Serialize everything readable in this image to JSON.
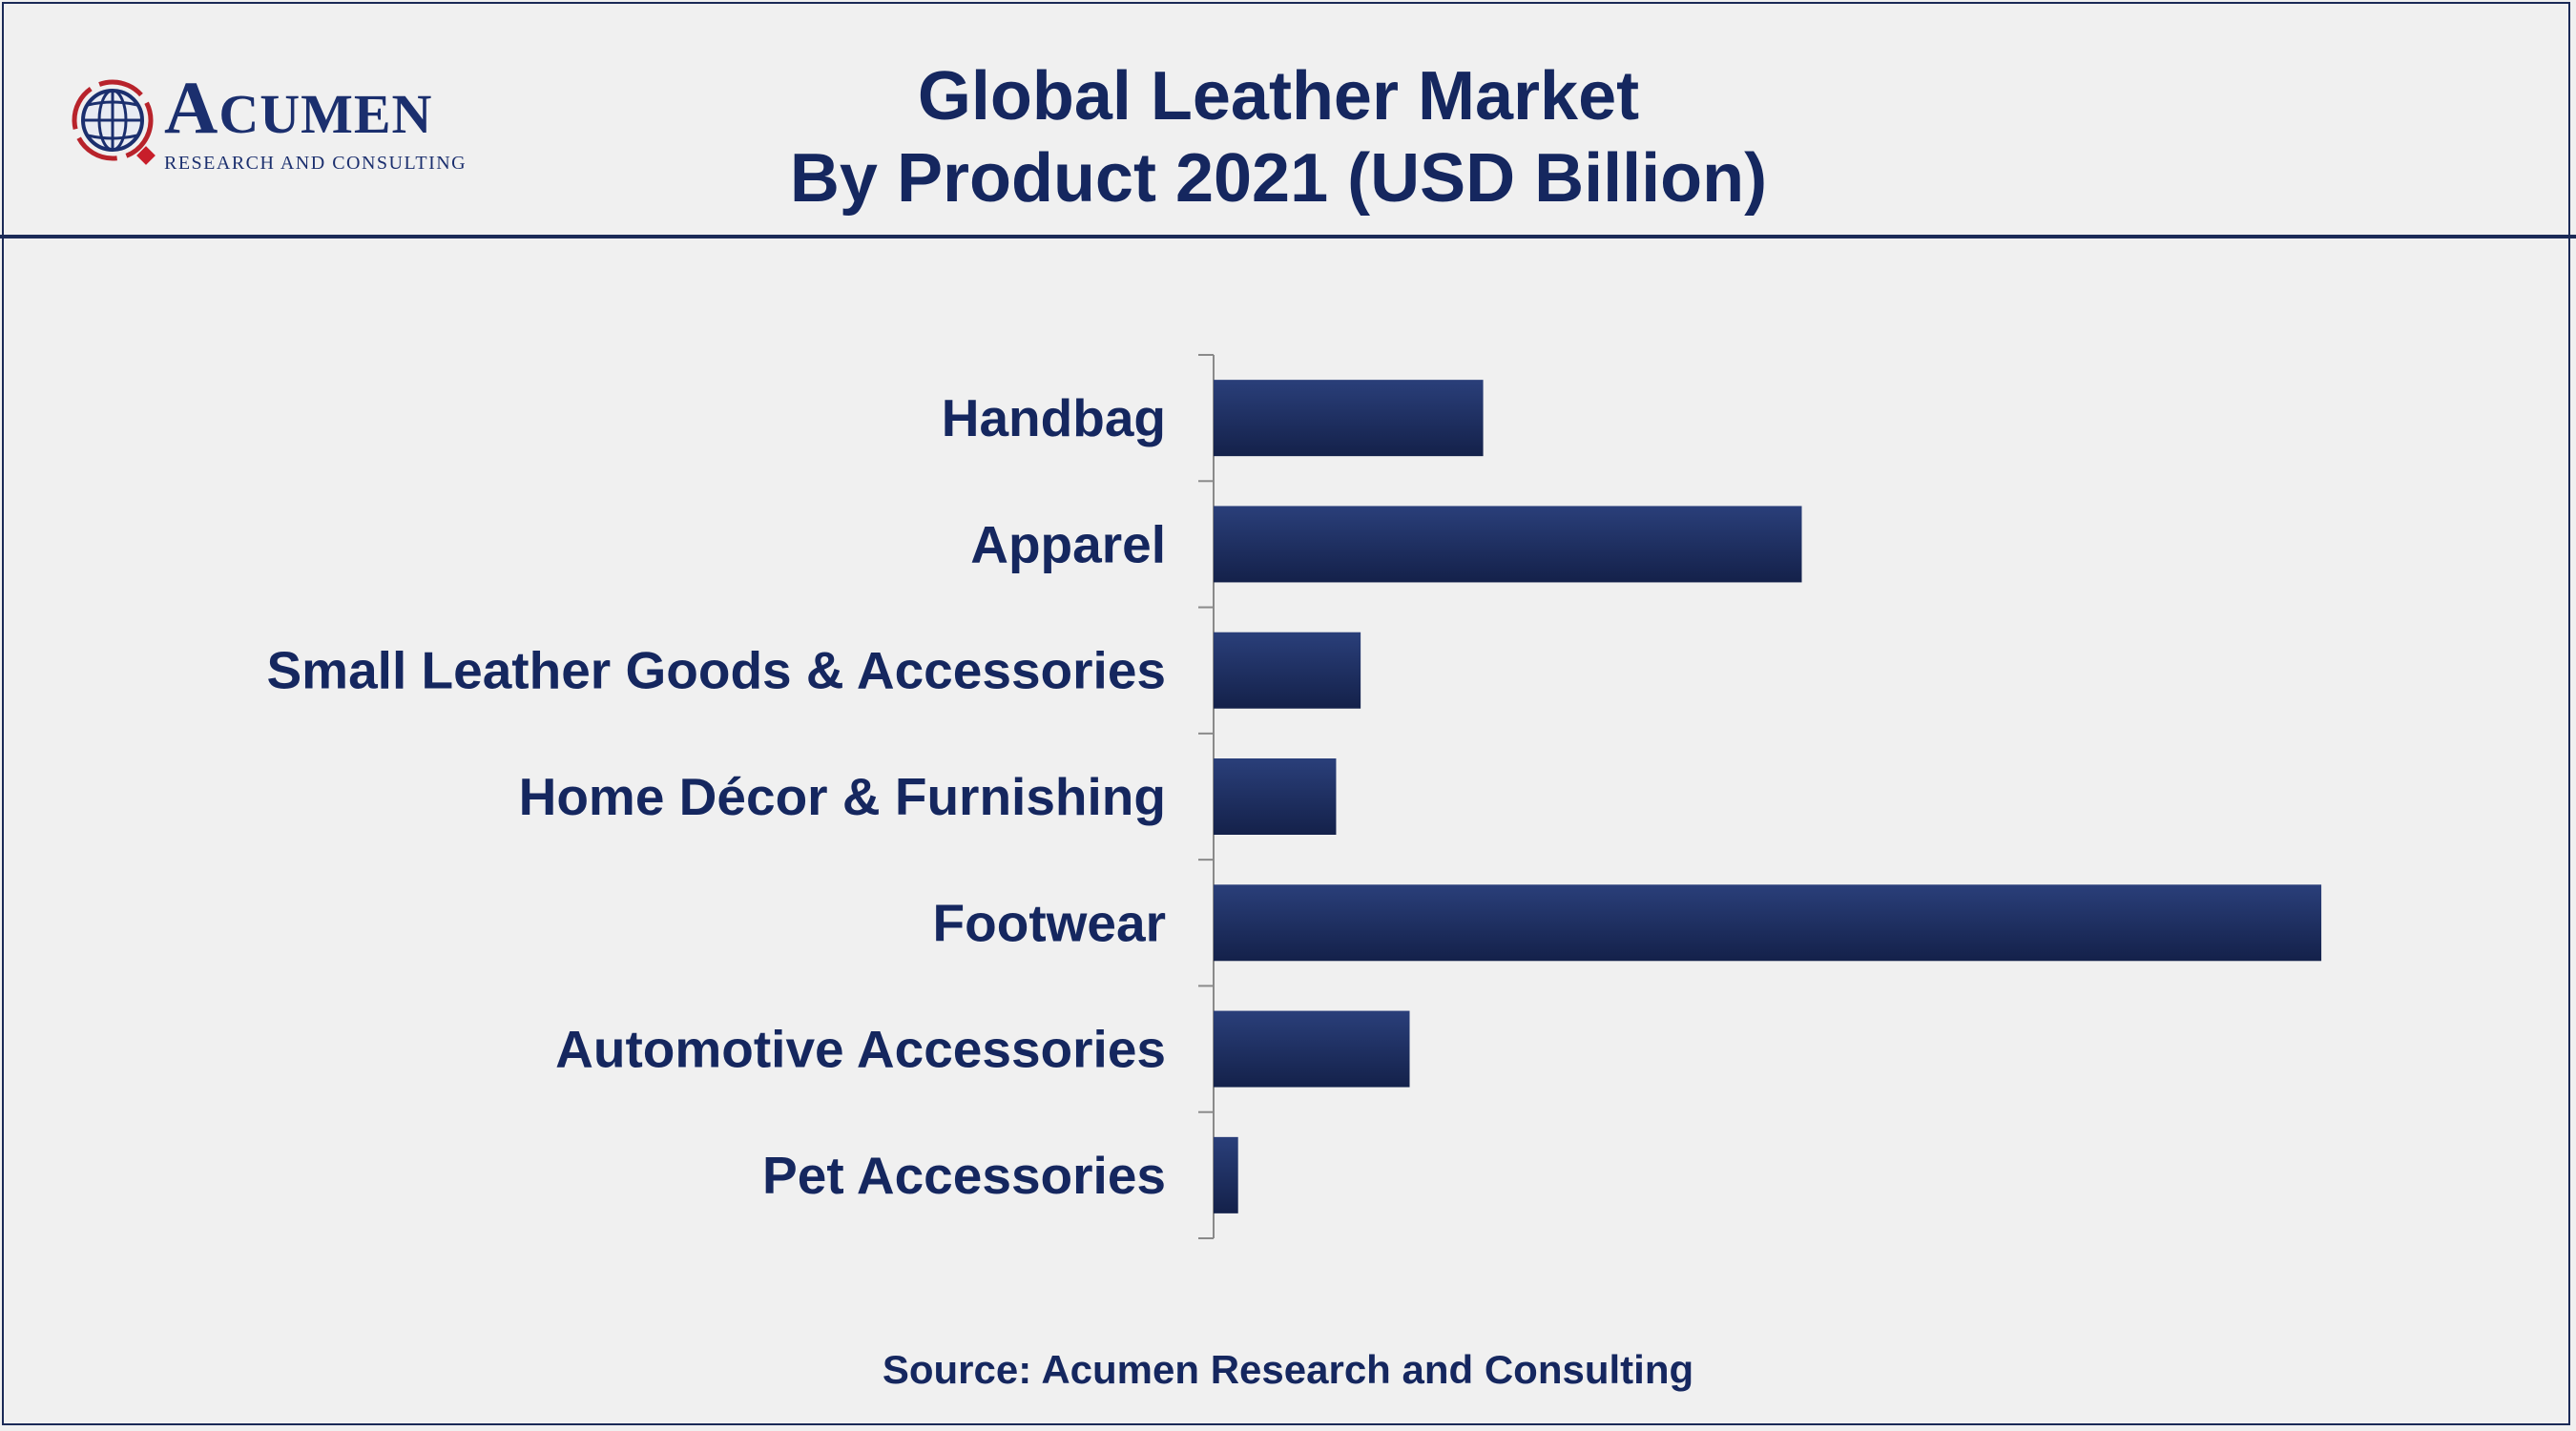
{
  "logo": {
    "name_initial": "A",
    "name_rest": "CUMEN",
    "tagline": "RESEARCH AND CONSULTING",
    "icon": "globe-icon"
  },
  "header": {
    "title_line1": "Global Leather Market",
    "title_line2": "By Product 2021 (USD Billion)"
  },
  "colors": {
    "bar": "#1d2e5e",
    "bar_top": "#2a3f7a",
    "text": "#15275f",
    "background": "#f0f0f0"
  },
  "chart_data": {
    "type": "bar",
    "orientation": "horizontal",
    "categories": [
      "Handbag",
      "Apparel",
      "Small Leather Goods & Accessories",
      "Home Décor & Furnishing",
      "Footwear",
      "Automotive Accessories",
      "Pet Accessories"
    ],
    "values": [
      27.5,
      60.0,
      15.0,
      12.5,
      113.0,
      20.0,
      2.5
    ],
    "xlim": [
      0,
      120
    ],
    "title": "Global Leather Market By Product 2021 (USD Billion)",
    "xlabel": "",
    "ylabel": "",
    "grid": false,
    "legend": "none"
  },
  "footer": {
    "source": "Source: Acumen Research and Consulting"
  }
}
